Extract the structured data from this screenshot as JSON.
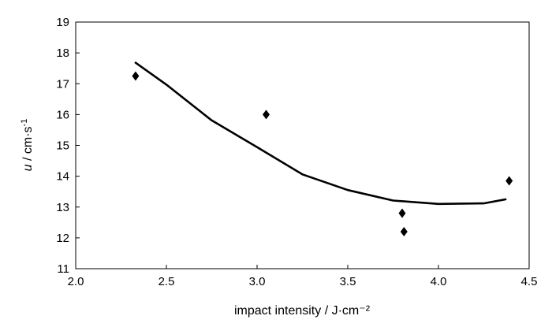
{
  "chart_data": {
    "type": "scatter",
    "xlabel": "impact intensity / J·cm⁻²",
    "ylabel_var": "u",
    "ylabel_rest": " / cm·s",
    "ylabel_sup": "-1",
    "xlim": [
      2.0,
      4.5
    ],
    "ylim": [
      11,
      19
    ],
    "x_ticks": [
      "2.0",
      "2.5",
      "3.0",
      "3.5",
      "4.0",
      "4.5"
    ],
    "y_ticks": [
      "11",
      "12",
      "13",
      "14",
      "15",
      "16",
      "17",
      "18",
      "19"
    ],
    "grid": false,
    "legend": "none",
    "series": [
      {
        "kind": "points",
        "marker": "diamond",
        "color": "#000000",
        "points": [
          {
            "x": 2.33,
            "y": 17.25
          },
          {
            "x": 3.05,
            "y": 16.0
          },
          {
            "x": 3.8,
            "y": 12.8
          },
          {
            "x": 3.81,
            "y": 12.2
          },
          {
            "x": 4.39,
            "y": 13.85
          }
        ]
      },
      {
        "kind": "trend",
        "line": "quadratic fit",
        "color": "#000000",
        "x": [
          2.33,
          2.5,
          2.75,
          3.0,
          3.25,
          3.5,
          3.75,
          4.0,
          4.25,
          4.37
        ],
        "y": [
          17.68,
          16.97,
          15.81,
          14.94,
          14.06,
          13.55,
          13.21,
          13.1,
          13.12,
          13.25
        ]
      }
    ]
  }
}
